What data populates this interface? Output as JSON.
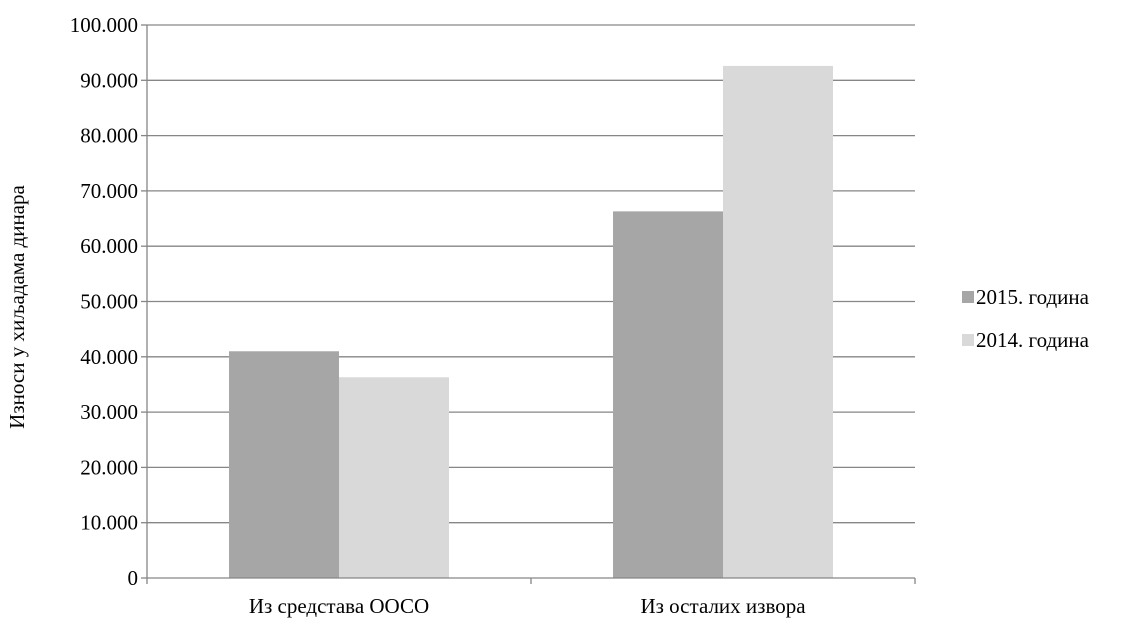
{
  "chart_data": {
    "type": "bar",
    "title": "",
    "xlabel": "",
    "ylabel": "Износи у хиљадама динара",
    "categories": [
      "Из средстава ООСО",
      "Из осталих извора"
    ],
    "series": [
      {
        "name": "2015. година",
        "values": [
          41000,
          66300
        ],
        "color": "#a6a6a6"
      },
      {
        "name": "2014. година",
        "values": [
          36300,
          92600
        ],
        "color": "#d9d9d9"
      }
    ],
    "ylim": [
      0,
      100000
    ],
    "yticks": [
      0,
      10000,
      20000,
      30000,
      40000,
      50000,
      60000,
      70000,
      80000,
      90000,
      100000
    ],
    "ytick_labels": [
      "0",
      "10.000",
      "20.000",
      "30.000",
      "40.000",
      "50.000",
      "60.000",
      "70.000",
      "80.000",
      "90.000",
      "100.000"
    ],
    "grid": true,
    "legend_position": "right"
  }
}
